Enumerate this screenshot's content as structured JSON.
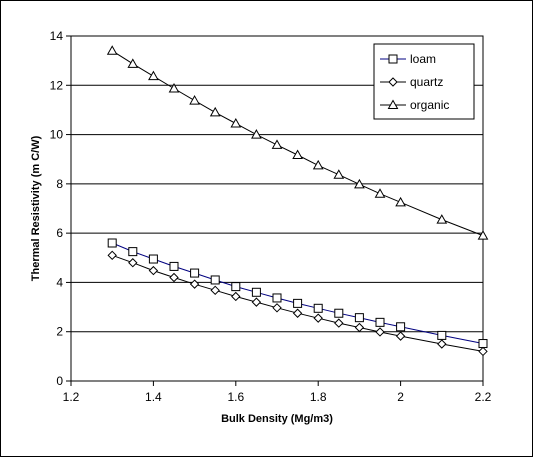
{
  "chart_data": {
    "type": "line",
    "title": "",
    "xlabel": "Bulk Density (Mg/m3)",
    "ylabel": "Thermal Resistivity (m C/W)",
    "xlim": [
      1.2,
      2.2
    ],
    "ylim": [
      0,
      14
    ],
    "x_ticks": [
      1.2,
      1.4,
      1.6,
      1.8,
      2,
      2.2
    ],
    "y_ticks": [
      0,
      2,
      4,
      6,
      8,
      10,
      12,
      14
    ],
    "grid": "horizontal",
    "legend_position": "top-right",
    "series": [
      {
        "name": "loam",
        "marker": "square",
        "line_color": "#000080",
        "x": [
          1.3,
          1.35,
          1.4,
          1.45,
          1.5,
          1.55,
          1.6,
          1.65,
          1.7,
          1.75,
          1.8,
          1.85,
          1.9,
          1.95,
          2.0,
          2.1,
          2.2
        ],
        "y": [
          5.6,
          5.25,
          4.95,
          4.65,
          4.38,
          4.1,
          3.83,
          3.6,
          3.37,
          3.15,
          2.95,
          2.75,
          2.57,
          2.38,
          2.2,
          1.85,
          1.52
        ]
      },
      {
        "name": "quartz",
        "marker": "diamond",
        "line_color": "#000000",
        "x": [
          1.3,
          1.35,
          1.4,
          1.45,
          1.5,
          1.55,
          1.6,
          1.65,
          1.7,
          1.75,
          1.8,
          1.85,
          1.9,
          1.95,
          2.0,
          2.1,
          2.2
        ],
        "y": [
          5.1,
          4.8,
          4.48,
          4.2,
          3.93,
          3.68,
          3.43,
          3.2,
          2.97,
          2.75,
          2.55,
          2.35,
          2.17,
          1.99,
          1.82,
          1.5,
          1.2
        ]
      },
      {
        "name": "organic",
        "marker": "triangle",
        "line_color": "#000000",
        "x": [
          1.3,
          1.35,
          1.4,
          1.45,
          1.5,
          1.55,
          1.6,
          1.65,
          1.7,
          1.75,
          1.8,
          1.85,
          1.9,
          1.95,
          2.0,
          2.1,
          2.2
        ],
        "y": [
          13.4,
          12.87,
          12.37,
          11.87,
          11.38,
          10.9,
          10.45,
          10.0,
          9.58,
          9.17,
          8.75,
          8.37,
          7.98,
          7.6,
          7.25,
          6.55,
          5.9
        ]
      }
    ]
  }
}
